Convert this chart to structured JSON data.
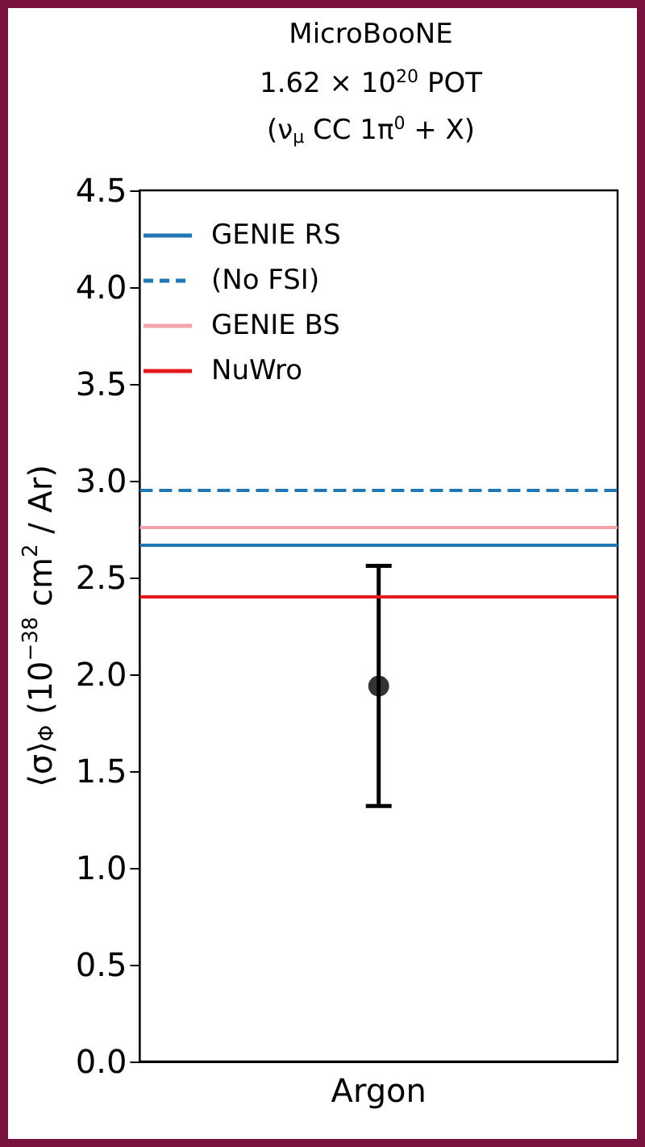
{
  "chart_data": {
    "type": "scatter",
    "title": "MicroBooNE",
    "subtitle": "1.62 × 10$^{20}$ POT",
    "annotations": [
      "(ν$_{μ}$ CC 1π$^{0}$ + X)"
    ],
    "ylabel": "⟨σ⟩$_{Φ}$ (10$^{−38}$ cm$^{2}$ / Ar)",
    "categories": [
      "Argon"
    ],
    "series": [
      {
        "color": "#000000",
        "values": [
          1.94
        ],
        "errors": [
          [
            1.32,
            2.56
          ]
        ]
      }
    ],
    "marker": "circle",
    "ylim": [
      0,
      4.5
    ],
    "yticks": [
      {
        "value": 0,
        "label": "0.0"
      },
      0.5,
      {
        "value": 1,
        "label": "1.0"
      },
      1.5,
      {
        "value": 2,
        "label": "2.0"
      },
      2.5,
      {
        "value": 3,
        "label": "3.0"
      },
      3.5,
      {
        "value": 4,
        "label": "4.0"
      },
      4.5
    ],
    "ref_lines": [
      {
        "axis": "y",
        "value": 2.67,
        "label": "GENIE RS",
        "color": "#1f77b4",
        "line_style": "solid"
      },
      {
        "axis": "y",
        "value": 2.95,
        "label": "(No FSI)",
        "color": "#1f77b4",
        "line_style": "dashed"
      },
      {
        "axis": "y",
        "value": 2.76,
        "label": "GENIE BS",
        "color": "#f4a3ab",
        "line_style": "solid"
      },
      {
        "axis": "y",
        "value": 2.4,
        "label": "NuWro",
        "color": "#e3191c",
        "line_style": "solid"
      }
    ],
    "legend": "top left",
    "grid": false
  }
}
